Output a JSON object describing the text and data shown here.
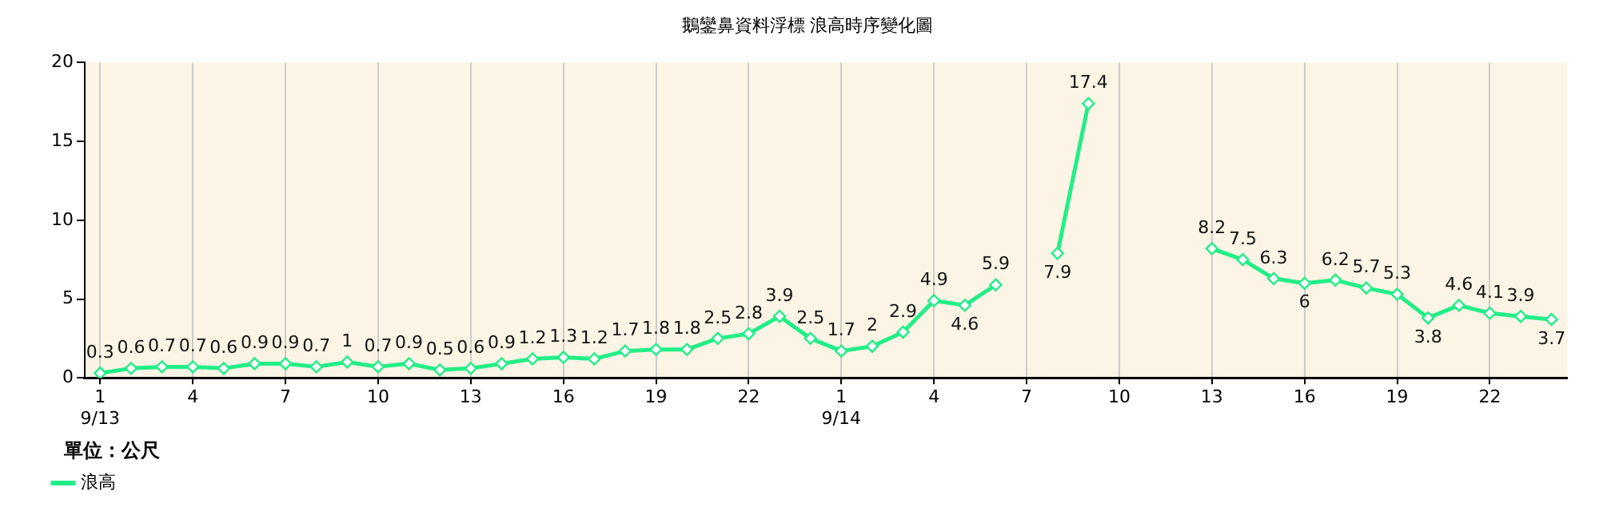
{
  "chart_data": {
    "type": "line",
    "title": "鵝鑾鼻資料浮標 浪高時序變化圖",
    "categories": [
      "1\n9/13",
      null,
      null,
      "4",
      null,
      null,
      "7",
      null,
      null,
      "10",
      null,
      null,
      "13",
      null,
      null,
      "16",
      null,
      null,
      "19",
      null,
      null,
      "22",
      null,
      null,
      "1\n9/14",
      null,
      null,
      "4",
      null,
      null,
      "7",
      null,
      null,
      "10",
      null,
      null,
      "13",
      null,
      null,
      "16",
      null,
      null,
      "19",
      null,
      null,
      "22",
      null,
      null
    ],
    "series": [
      {
        "name": "浪高",
        "color": "#22ee88",
        "values": [
          0.3,
          0.6,
          0.7,
          0.7,
          0.6,
          0.9,
          0.9,
          0.7,
          1,
          0.7,
          0.9,
          0.5,
          0.6,
          0.9,
          1.2,
          1.3,
          1.2,
          1.7,
          1.8,
          1.8,
          2.5,
          2.8,
          3.9,
          2.5,
          1.7,
          2,
          2.9,
          4.9,
          4.6,
          5.9,
          null,
          7.9,
          17.4,
          null,
          null,
          null,
          8.2,
          7.5,
          6.3,
          6,
          6.2,
          5.7,
          5.3,
          3.8,
          4.6,
          4.1,
          3.9,
          3.7
        ]
      }
    ],
    "ylim": [
      0,
      20
    ],
    "yticks": [
      0,
      5,
      10,
      15,
      20
    ],
    "grid": "x",
    "legend": "bottom left",
    "marker": "diamond",
    "line_style": "solid",
    "data_labels": true,
    "annotations": [
      "單位：公尺"
    ]
  }
}
